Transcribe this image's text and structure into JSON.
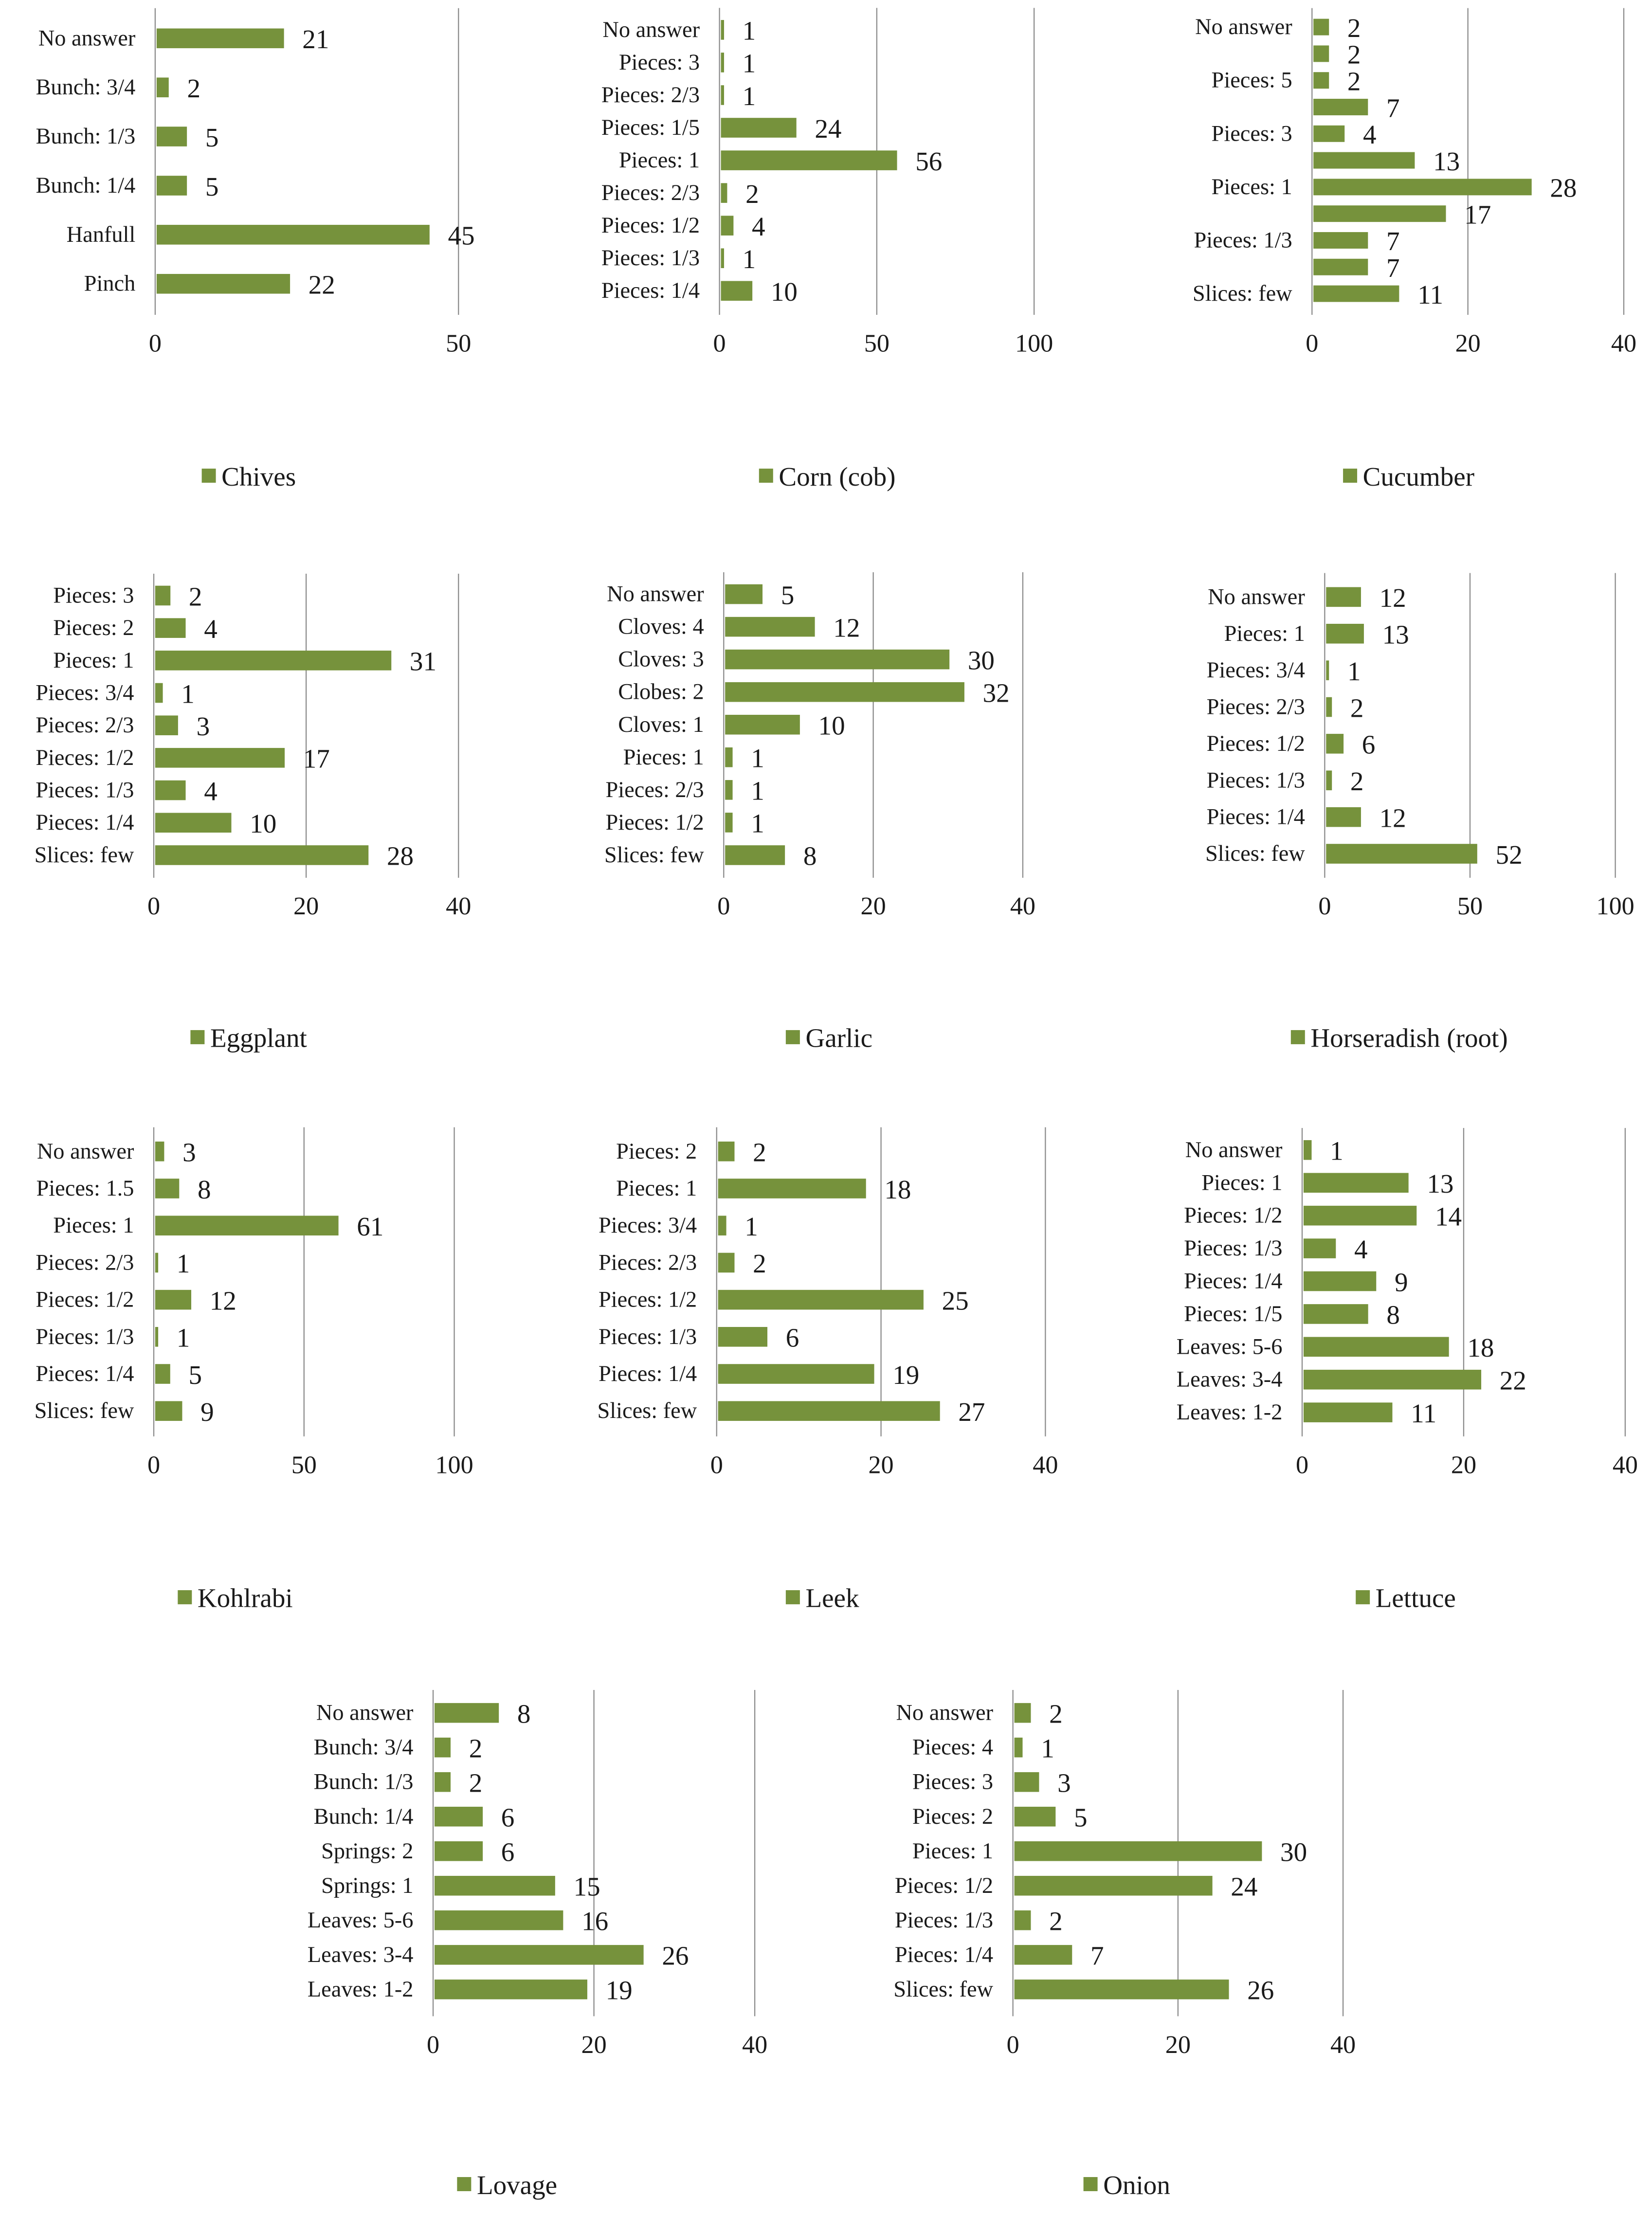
{
  "chart_data": [
    {
      "type": "bar",
      "title": "",
      "legend": "Chives",
      "series_color": "#76923c",
      "xlim": [
        0,
        50
      ],
      "ticks": [
        0,
        50
      ],
      "categories": [
        "No answer",
        "Bunch: 3/4",
        "Bunch: 1/3",
        "Bunch: 1/4",
        "Hanfull",
        "Pinch"
      ],
      "values": [
        21,
        2,
        5,
        5,
        45,
        22
      ]
    },
    {
      "type": "bar",
      "title": "",
      "legend": "Corn (cob)",
      "series_color": "#76923c",
      "xlim": [
        0,
        100
      ],
      "ticks": [
        0,
        50,
        100
      ],
      "categories": [
        "No answer",
        "Pieces: 3",
        "Pieces: 2/3",
        "Pieces: 1/5",
        "Pieces: 1",
        "Pieces: 2/3",
        "Pieces: 1/2",
        "Pieces: 1/3",
        "Pieces: 1/4"
      ],
      "values": [
        1,
        1,
        1,
        24,
        56,
        2,
        4,
        1,
        10
      ]
    },
    {
      "type": "bar",
      "title": "",
      "legend": "Cucumber",
      "series_color": "#76923c",
      "xlim": [
        0,
        40
      ],
      "ticks": [
        0,
        20,
        40
      ],
      "categories": [
        "No answer",
        "",
        "Pieces: 5",
        "",
        "Pieces: 3",
        "",
        "Pieces: 1",
        "",
        "Pieces: 1/3",
        "",
        "Slices: few"
      ],
      "values": [
        2,
        2,
        2,
        7,
        4,
        13,
        28,
        17,
        7,
        7,
        11
      ]
    },
    {
      "type": "bar",
      "title": "",
      "legend": "Eggplant",
      "series_color": "#76923c",
      "xlim": [
        0,
        40
      ],
      "ticks": [
        0,
        20,
        40
      ],
      "categories": [
        "Pieces: 3",
        "Pieces: 2",
        "Pieces: 1",
        "Pieces: 3/4",
        "Pieces: 2/3",
        "Pieces: 1/2",
        "Pieces: 1/3",
        "Pieces: 1/4",
        "Slices: few"
      ],
      "values": [
        2,
        4,
        31,
        1,
        3,
        17,
        4,
        10,
        28
      ]
    },
    {
      "type": "bar",
      "title": "",
      "legend": "Garlic",
      "series_color": "#76923c",
      "xlim": [
        0,
        40
      ],
      "ticks": [
        0,
        20,
        40
      ],
      "categories": [
        "No answer",
        "Cloves: 4",
        "Cloves: 3",
        "Clobes: 2",
        "Cloves: 1",
        "Pieces: 1",
        "Pieces: 2/3",
        "Pieces: 1/2",
        "Slices: few"
      ],
      "values": [
        5,
        12,
        30,
        32,
        10,
        1,
        1,
        1,
        8
      ]
    },
    {
      "type": "bar",
      "title": "",
      "legend": "Horseradish (root)",
      "series_color": "#76923c",
      "xlim": [
        0,
        100
      ],
      "ticks": [
        0,
        50,
        100
      ],
      "categories": [
        "No answer",
        "Pieces: 1",
        "Pieces: 3/4",
        "Pieces: 2/3",
        "Pieces: 1/2",
        "Pieces: 1/3",
        "Pieces: 1/4",
        "Slices: few"
      ],
      "values": [
        12,
        13,
        1,
        2,
        6,
        2,
        12,
        52
      ]
    },
    {
      "type": "bar",
      "title": "",
      "legend": "Kohlrabi",
      "series_color": "#76923c",
      "xlim": [
        0,
        100
      ],
      "ticks": [
        0,
        50,
        100
      ],
      "categories": [
        "No answer",
        "Pieces: 1.5",
        "Pieces: 1",
        "Pieces: 2/3",
        "Pieces: 1/2",
        "Pieces: 1/3",
        "Pieces: 1/4",
        "Slices: few"
      ],
      "values": [
        3,
        8,
        61,
        1,
        12,
        1,
        5,
        9
      ]
    },
    {
      "type": "bar",
      "title": "",
      "legend": "Leek",
      "series_color": "#76923c",
      "xlim": [
        0,
        40
      ],
      "ticks": [
        0,
        20,
        40
      ],
      "categories": [
        "Pieces: 2",
        "Pieces: 1",
        "Pieces: 3/4",
        "Pieces: 2/3",
        "Pieces: 1/2",
        "Pieces: 1/3",
        "Pieces: 1/4",
        "Slices: few"
      ],
      "values": [
        2,
        18,
        1,
        2,
        25,
        6,
        19,
        27
      ]
    },
    {
      "type": "bar",
      "title": "",
      "legend": "Lettuce",
      "series_color": "#76923c",
      "xlim": [
        0,
        40
      ],
      "ticks": [
        0,
        20,
        40
      ],
      "categories": [
        "No answer",
        "Pieces: 1",
        "Pieces: 1/2",
        "Pieces: 1/3",
        "Pieces: 1/4",
        "Pieces: 1/5",
        "Leaves: 5-6",
        "Leaves: 3-4",
        "Leaves: 1-2"
      ],
      "values": [
        1,
        13,
        14,
        4,
        9,
        8,
        18,
        22,
        11
      ]
    },
    {
      "type": "bar",
      "title": "",
      "legend": "Lovage",
      "series_color": "#76923c",
      "xlim": [
        0,
        40
      ],
      "ticks": [
        0,
        20,
        40
      ],
      "categories": [
        "No answer",
        "Bunch: 3/4",
        "Bunch: 1/3",
        "Bunch: 1/4",
        "Springs: 2",
        "Springs: 1",
        "Leaves: 5-6",
        "Leaves: 3-4",
        "Leaves: 1-2"
      ],
      "values": [
        8,
        2,
        2,
        6,
        6,
        15,
        16,
        26,
        19
      ]
    },
    {
      "type": "bar",
      "title": "",
      "legend": "Onion",
      "series_color": "#76923c",
      "xlim": [
        0,
        40
      ],
      "ticks": [
        0,
        20,
        40
      ],
      "categories": [
        "No answer",
        "Pieces: 4",
        "Pieces: 3",
        "Pieces: 2",
        "Pieces: 1",
        "Pieces: 1/2",
        "Pieces: 1/3",
        "Pieces: 1/4",
        "Slices: few"
      ],
      "values": [
        2,
        1,
        3,
        5,
        30,
        24,
        2,
        7,
        26
      ]
    }
  ]
}
